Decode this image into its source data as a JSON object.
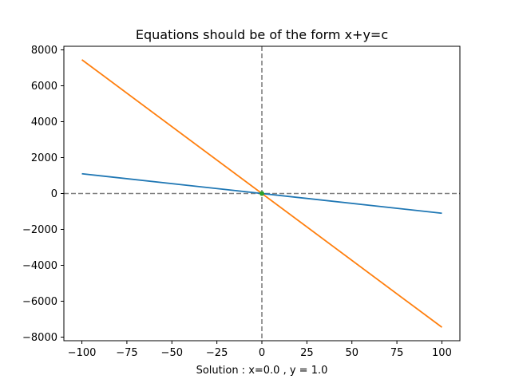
{
  "chart_data": {
    "type": "line",
    "title": "Equations should be of the form x+y=c",
    "xlabel": "Solution : x=0.0 , y = 1.0",
    "ylabel": "",
    "xlim": [
      -110,
      110
    ],
    "ylim": [
      -8200,
      8200
    ],
    "xticks": [
      -100,
      -75,
      -50,
      -25,
      0,
      25,
      50,
      75,
      100
    ],
    "xtick_labels": [
      "−100",
      "−75",
      "−50",
      "−25",
      "0",
      "25",
      "50",
      "75",
      "100"
    ],
    "yticks": [
      -8000,
      -6000,
      -4000,
      -2000,
      0,
      2000,
      4000,
      6000,
      8000
    ],
    "ytick_labels": [
      "−8000",
      "−6000",
      "−4000",
      "−2000",
      "0",
      "2000",
      "4000",
      "6000",
      "8000"
    ],
    "grid": false,
    "series": [
      {
        "color": "#1f77b4",
        "x": [
          -100,
          100
        ],
        "y": [
          1100,
          -1100
        ]
      },
      {
        "color": "#ff7f0e",
        "x": [
          -100,
          100
        ],
        "y": [
          7450,
          -7450
        ]
      }
    ],
    "reference_lines": {
      "color": "#808080",
      "horizontal_y": 0,
      "vertical_x": 0
    },
    "solution_point": {
      "x": 0,
      "y": 1,
      "color": "#2ca02c"
    }
  }
}
